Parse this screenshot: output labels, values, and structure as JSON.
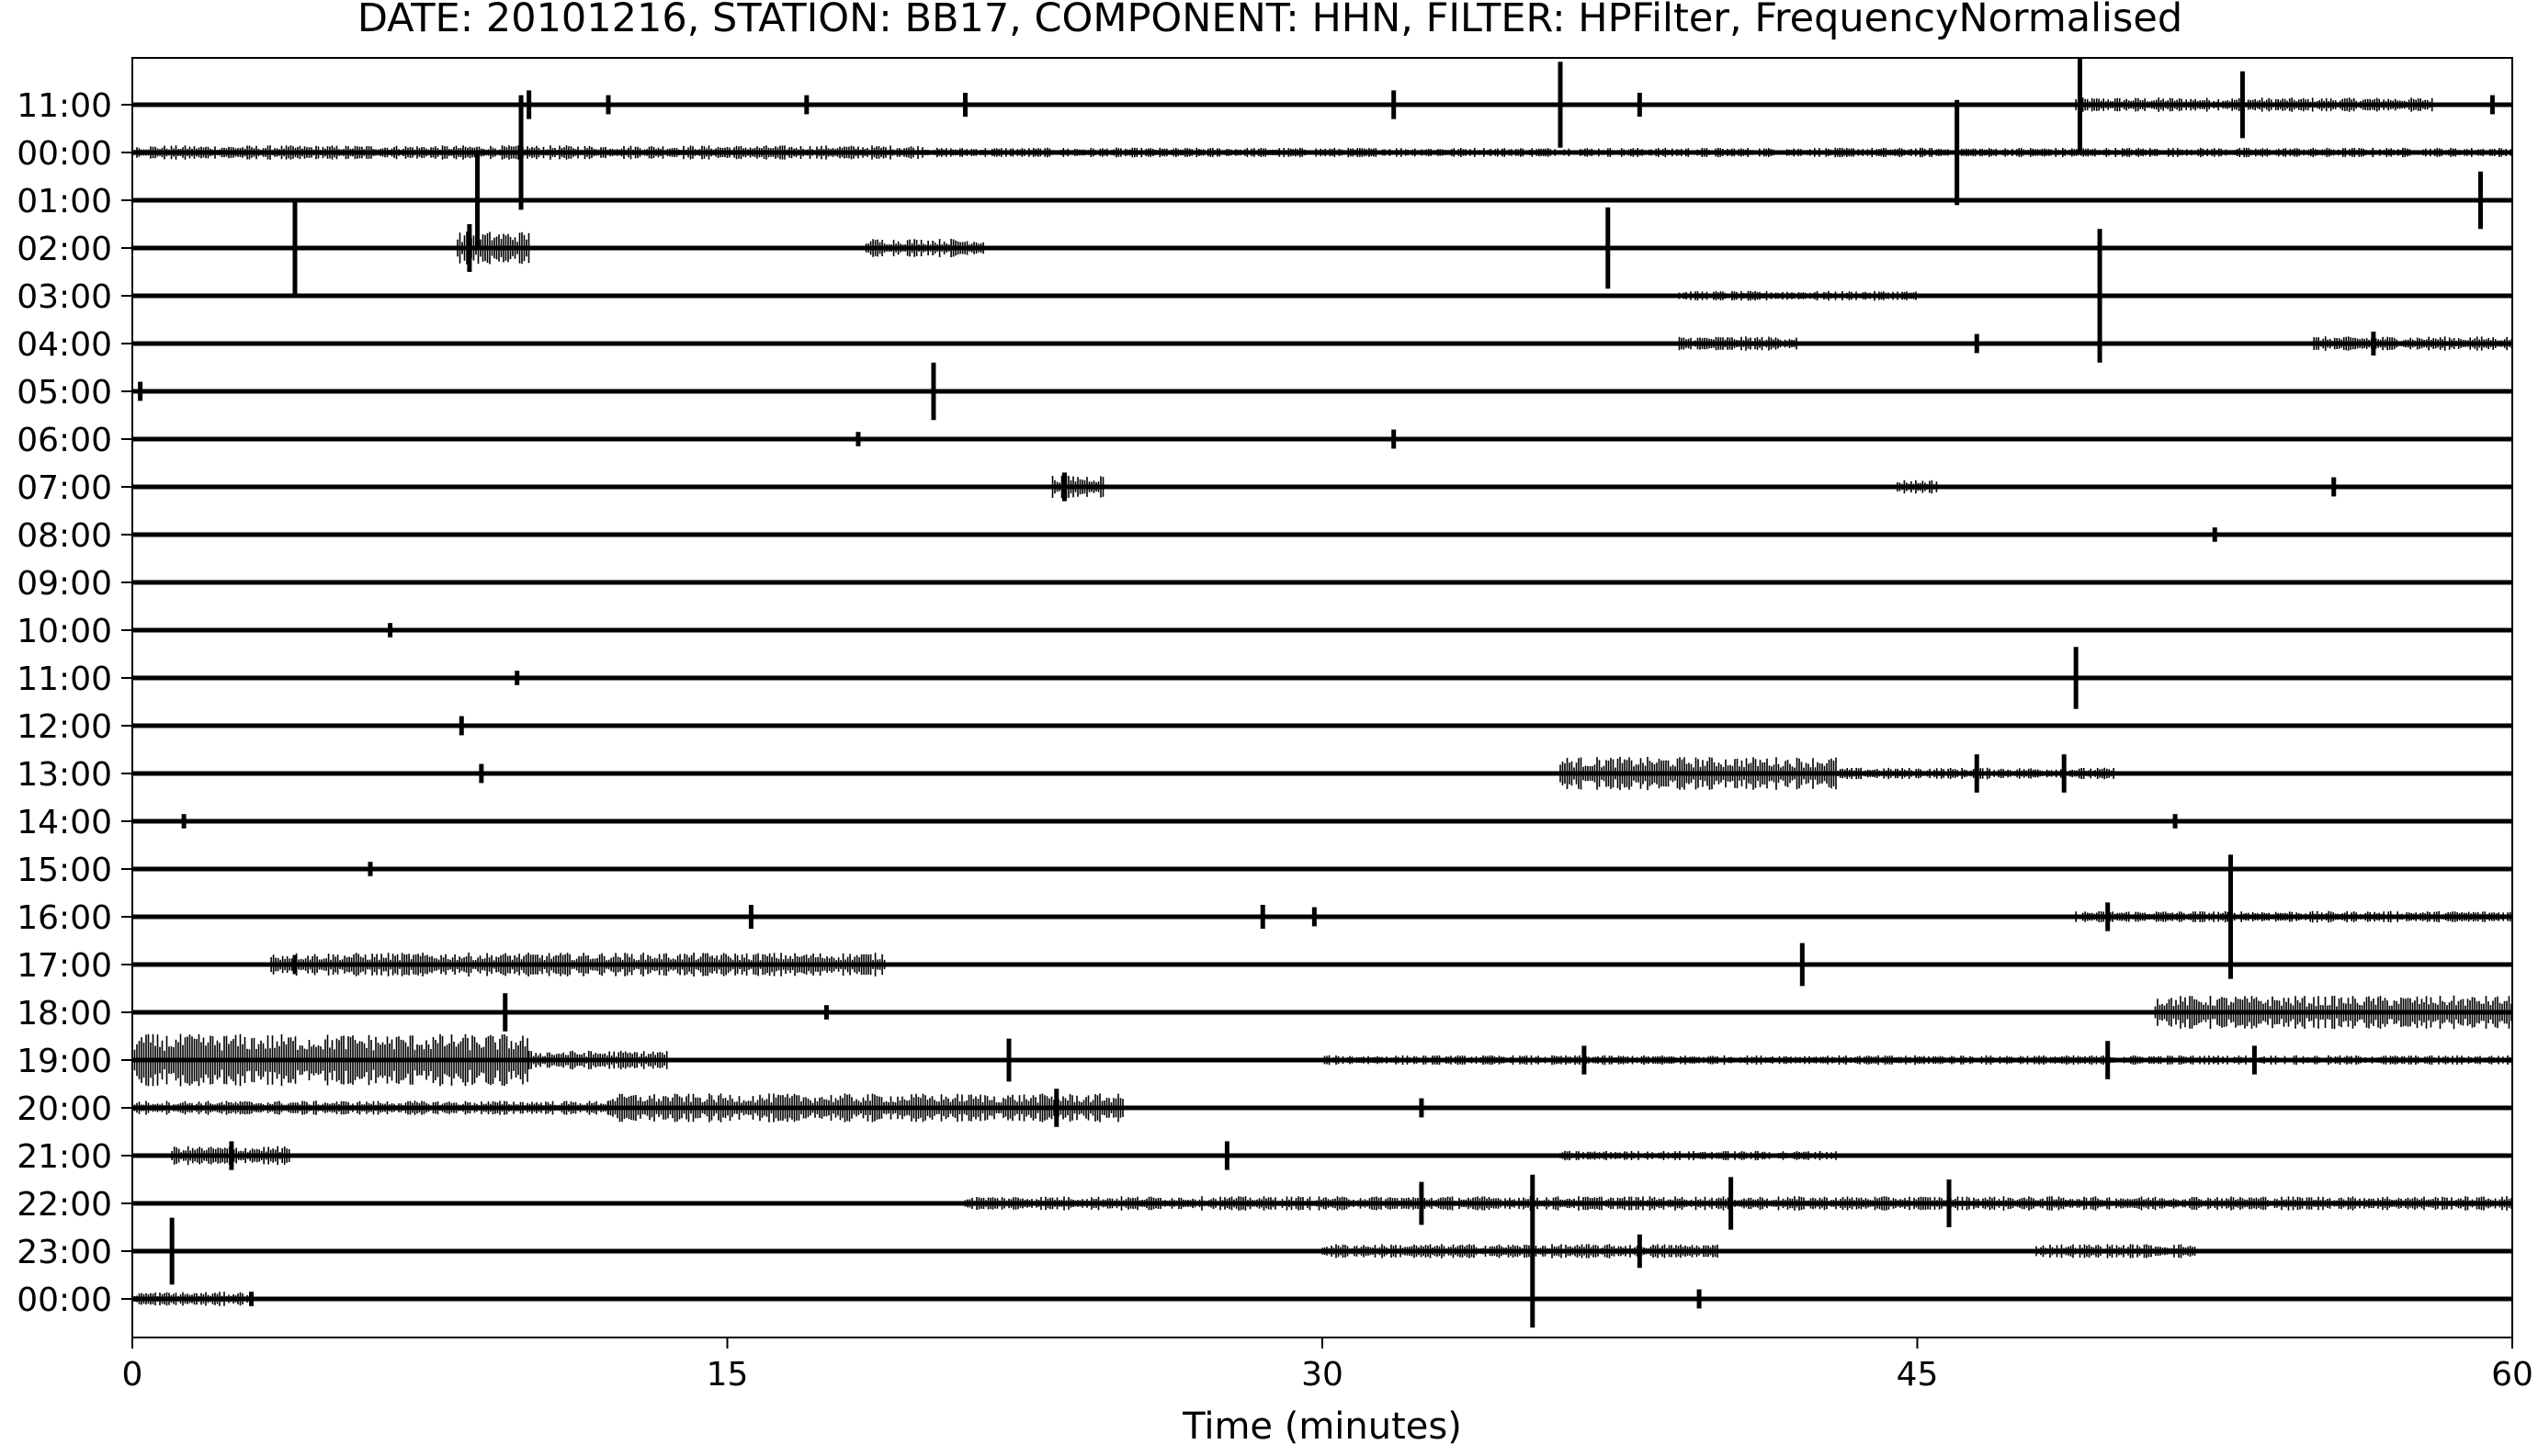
{
  "chart_data": {
    "type": "line",
    "title": "DATE: 20101216, STATION: BB17, COMPONENT: HHN, FILTER: HPFilter, FrequencyNormalised",
    "xlabel": "Time (minutes)",
    "ylabel": "",
    "xlim": [
      0,
      60
    ],
    "xticks": [
      0,
      15,
      30,
      45,
      60
    ],
    "grid": false,
    "legend": "none",
    "trace_color": "#000000",
    "rows": [
      {
        "label": "11:00",
        "events": [
          {
            "t": 10.0,
            "a": 0.3
          },
          {
            "t": 12.0,
            "a": 0.2
          },
          {
            "t": 17.0,
            "a": 0.2
          },
          {
            "t": 21.0,
            "a": 0.25
          },
          {
            "t": 31.8,
            "a": 0.3
          },
          {
            "t": 36.0,
            "a": 0.9
          },
          {
            "t": 38.0,
            "a": 0.25
          },
          {
            "t": 49.1,
            "a": 1.0
          },
          {
            "t": 53.2,
            "a": 0.7
          },
          {
            "t": 59.5,
            "a": 0.2
          }
        ],
        "bursts": [
          {
            "start": 49,
            "end": 58,
            "a": 0.15
          }
        ]
      },
      {
        "label": "00:00",
        "events": [
          {
            "t": 9.8,
            "a": 1.2
          },
          {
            "t": 46.0,
            "a": 1.1
          }
        ],
        "bursts": [
          {
            "start": 0,
            "end": 20,
            "a": 0.15
          },
          {
            "start": 20,
            "end": 60,
            "a": 0.1
          }
        ]
      },
      {
        "label": "01:00",
        "events": [
          {
            "t": 8.7,
            "a": 1.0
          },
          {
            "t": 59.2,
            "a": 0.6
          }
        ],
        "bursts": []
      },
      {
        "label": "02:00",
        "events": [
          {
            "t": 4.1,
            "a": 1.0
          },
          {
            "t": 8.5,
            "a": 0.5
          },
          {
            "t": 37.2,
            "a": 0.85
          }
        ],
        "bursts": [
          {
            "start": 8.2,
            "end": 10.0,
            "a": 0.35
          },
          {
            "start": 18.5,
            "end": 21.5,
            "a": 0.2
          }
        ]
      },
      {
        "label": "03:00",
        "events": [
          {
            "t": 49.6,
            "a": 1.4
          }
        ],
        "bursts": [
          {
            "start": 39,
            "end": 45,
            "a": 0.1
          }
        ]
      },
      {
        "label": "04:00",
        "events": [
          {
            "t": 46.5,
            "a": 0.2
          },
          {
            "t": 56.5,
            "a": 0.25
          }
        ],
        "bursts": [
          {
            "start": 39,
            "end": 42,
            "a": 0.15
          },
          {
            "start": 55,
            "end": 60,
            "a": 0.15
          }
        ]
      },
      {
        "label": "05:00",
        "events": [
          {
            "t": 20.2,
            "a": 0.6
          },
          {
            "t": 0.2,
            "a": 0.2
          }
        ],
        "bursts": []
      },
      {
        "label": "06:00",
        "events": [
          {
            "t": 31.8,
            "a": 0.2
          },
          {
            "t": 18.3,
            "a": 0.15
          }
        ],
        "bursts": []
      },
      {
        "label": "07:00",
        "events": [
          {
            "t": 23.5,
            "a": 0.3
          },
          {
            "t": 55.5,
            "a": 0.2
          }
        ],
        "bursts": [
          {
            "start": 23.2,
            "end": 24.5,
            "a": 0.25
          },
          {
            "start": 44.5,
            "end": 45.5,
            "a": 0.15
          }
        ]
      },
      {
        "label": "08:00",
        "events": [
          {
            "t": 52.5,
            "a": 0.15
          }
        ],
        "bursts": []
      },
      {
        "label": "09:00",
        "events": [],
        "bursts": []
      },
      {
        "label": "10:00",
        "events": [
          {
            "t": 6.5,
            "a": 0.15
          }
        ],
        "bursts": []
      },
      {
        "label": "11:00",
        "events": [
          {
            "t": 49.0,
            "a": 0.65
          },
          {
            "t": 9.7,
            "a": 0.15
          }
        ],
        "bursts": []
      },
      {
        "label": "12:00",
        "events": [
          {
            "t": 8.3,
            "a": 0.2
          }
        ],
        "bursts": []
      },
      {
        "label": "13:00",
        "events": [
          {
            "t": 8.8,
            "a": 0.2
          },
          {
            "t": 46.5,
            "a": 0.4
          },
          {
            "t": 48.7,
            "a": 0.4
          }
        ],
        "bursts": [
          {
            "start": 36,
            "end": 43,
            "a": 0.35
          },
          {
            "start": 43,
            "end": 50,
            "a": 0.12
          }
        ]
      },
      {
        "label": "14:00",
        "events": [
          {
            "t": 1.3,
            "a": 0.15
          },
          {
            "t": 51.5,
            "a": 0.15
          }
        ],
        "bursts": []
      },
      {
        "label": "15:00",
        "events": [
          {
            "t": 6.0,
            "a": 0.15
          }
        ],
        "bursts": []
      },
      {
        "label": "16:00",
        "events": [
          {
            "t": 15.6,
            "a": 0.25
          },
          {
            "t": 28.5,
            "a": 0.25
          },
          {
            "t": 29.8,
            "a": 0.2
          },
          {
            "t": 49.8,
            "a": 0.3
          },
          {
            "t": 52.9,
            "a": 1.3
          }
        ],
        "bursts": [
          {
            "start": 49,
            "end": 60,
            "a": 0.12
          }
        ]
      },
      {
        "label": "17:00",
        "events": [
          {
            "t": 42.1,
            "a": 0.45
          },
          {
            "t": 4.1,
            "a": 0.2
          }
        ],
        "bursts": [
          {
            "start": 3.5,
            "end": 19.0,
            "a": 0.25
          }
        ]
      },
      {
        "label": "18:00",
        "events": [
          {
            "t": 9.4,
            "a": 0.4
          },
          {
            "t": 17.5,
            "a": 0.15
          }
        ],
        "bursts": [
          {
            "start": 51,
            "end": 60,
            "a": 0.35
          }
        ]
      },
      {
        "label": "19:00",
        "events": [
          {
            "t": 22.1,
            "a": 0.45
          },
          {
            "t": 36.6,
            "a": 0.3
          },
          {
            "t": 49.8,
            "a": 0.4
          },
          {
            "t": 53.5,
            "a": 0.3
          }
        ],
        "bursts": [
          {
            "start": 0,
            "end": 10.0,
            "a": 0.55
          },
          {
            "start": 10.0,
            "end": 13.5,
            "a": 0.2
          },
          {
            "start": 30,
            "end": 60,
            "a": 0.1
          }
        ]
      },
      {
        "label": "20:00",
        "events": [
          {
            "t": 23.3,
            "a": 0.4
          },
          {
            "t": 32.5,
            "a": 0.2
          }
        ],
        "bursts": [
          {
            "start": 0,
            "end": 12,
            "a": 0.15
          },
          {
            "start": 12,
            "end": 25,
            "a": 0.3
          }
        ]
      },
      {
        "label": "21:00",
        "events": [
          {
            "t": 2.5,
            "a": 0.3
          },
          {
            "t": 27.6,
            "a": 0.3
          }
        ],
        "bursts": [
          {
            "start": 1.0,
            "end": 4.0,
            "a": 0.2
          },
          {
            "start": 36,
            "end": 43,
            "a": 0.1
          }
        ]
      },
      {
        "label": "22:00",
        "events": [
          {
            "t": 32.5,
            "a": 0.45
          },
          {
            "t": 40.3,
            "a": 0.55
          },
          {
            "t": 45.8,
            "a": 0.5
          }
        ],
        "bursts": [
          {
            "start": 21,
            "end": 60,
            "a": 0.15
          }
        ]
      },
      {
        "label": "23:00",
        "events": [
          {
            "t": 1.0,
            "a": 0.7
          },
          {
            "t": 35.3,
            "a": 1.6
          },
          {
            "t": 38.0,
            "a": 0.35
          }
        ],
        "bursts": [
          {
            "start": 30,
            "end": 40,
            "a": 0.15
          },
          {
            "start": 48,
            "end": 52,
            "a": 0.15
          }
        ]
      },
      {
        "label": "00:00",
        "events": [
          {
            "t": 39.5,
            "a": 0.2
          },
          {
            "t": 3.0,
            "a": 0.15
          }
        ],
        "bursts": [
          {
            "start": 0,
            "end": 3,
            "a": 0.15
          }
        ]
      }
    ]
  }
}
